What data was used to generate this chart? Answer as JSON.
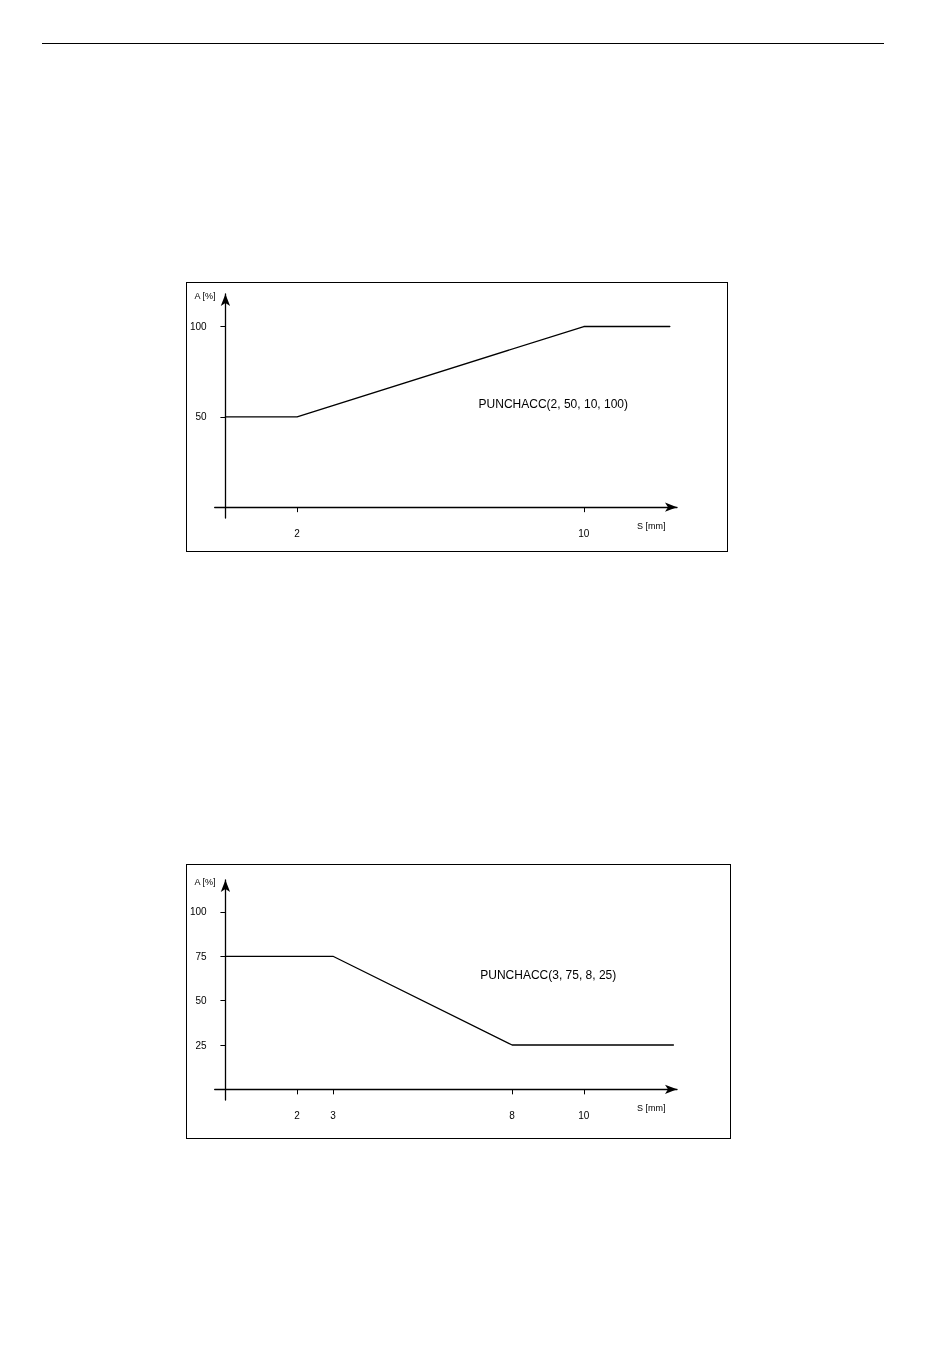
{
  "chart_data": [
    {
      "type": "line",
      "x": [
        0,
        2,
        10,
        12.4
      ],
      "values": [
        50,
        50,
        100,
        100
      ],
      "color": "#000000",
      "xlabel": "S [mm]",
      "ylabel": "A [%]",
      "xlim": [
        -0.3,
        12.6
      ],
      "ylim": [
        -6,
        118
      ],
      "xticks": [
        2,
        10
      ],
      "yticks": [
        50,
        100
      ],
      "marker": "none",
      "line_style": "solid",
      "grid": false,
      "annotations": [
        "PUNCHACC(2, 50, 10, 100)"
      ]
    },
    {
      "type": "line",
      "x": [
        0,
        3,
        8,
        12.5
      ],
      "values": [
        75,
        75,
        25,
        25
      ],
      "color": "#000000",
      "xlabel": "S [mm]",
      "ylabel": "A [%]",
      "xlim": [
        -0.3,
        12.6
      ],
      "ylim": [
        -6,
        118
      ],
      "xticks": [
        2,
        3,
        8,
        10
      ],
      "yticks": [
        25,
        50,
        75,
        100
      ],
      "marker": "none",
      "line_style": "solid",
      "grid": false,
      "annotations": [
        "PUNCHACC(3, 75, 8, 25)"
      ]
    }
  ]
}
